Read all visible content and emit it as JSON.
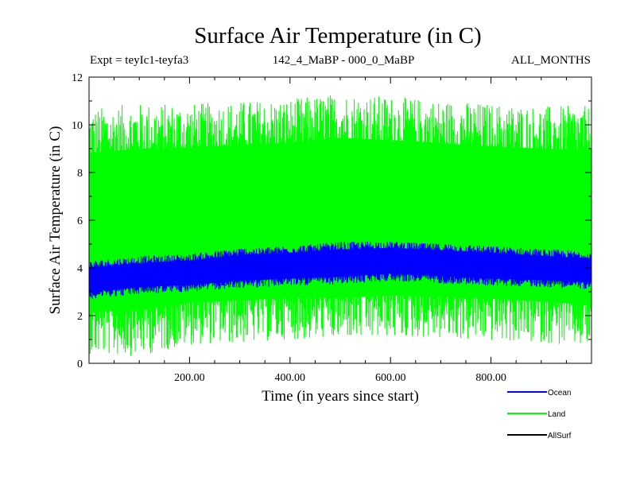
{
  "chart_data": {
    "type": "line",
    "title": "Surface Air Temperature (in C)",
    "subtitle_left": "Expt = teyIc1-teyfa3",
    "subtitle_center": "142_4_MaBP - 000_0_MaBP",
    "subtitle_right": "ALL_MONTHS",
    "xlabel": "Time (in years since start)",
    "ylabel": "Surface Air Temperature (in C)",
    "xlim": [
      0,
      1000
    ],
    "ylim": [
      0,
      12
    ],
    "x_ticks": [
      200,
      400,
      600,
      800
    ],
    "x_tick_labels": [
      "200.00",
      "400.00",
      "600.00",
      "800.00"
    ],
    "y_ticks": [
      0,
      2,
      4,
      6,
      8,
      10,
      12
    ],
    "y_tick_labels": [
      "0",
      "2",
      "4",
      "6",
      "8",
      "10",
      "12"
    ],
    "legend_position": "bottom-right",
    "series": [
      {
        "name": "Land",
        "color": "#00ff00",
        "draw_order": 1,
        "band": {
          "x": [
            0,
            100,
            200,
            300,
            400,
            500,
            600,
            700,
            800,
            900,
            1000
          ],
          "upper": [
            10.8,
            10.9,
            11.0,
            11.1,
            11.2,
            11.7,
            11.4,
            11.2,
            11.0,
            10.9,
            10.8
          ],
          "lower": [
            0.4,
            0.3,
            0.8,
            0.9,
            1.0,
            1.2,
            1.2,
            1.1,
            1.0,
            0.9,
            0.6
          ],
          "mean": [
            5.5,
            5.6,
            5.8,
            5.9,
            6.0,
            6.1,
            6.1,
            6.0,
            5.9,
            5.8,
            5.7
          ]
        }
      },
      {
        "name": "Ocean",
        "color": "#0000ff",
        "draw_order": 2,
        "band": {
          "x": [
            0,
            100,
            200,
            300,
            400,
            500,
            600,
            700,
            800,
            900,
            1000
          ],
          "upper": [
            4.3,
            4.5,
            4.6,
            4.8,
            4.9,
            5.1,
            5.1,
            5.0,
            4.9,
            4.8,
            4.7
          ],
          "lower": [
            2.7,
            2.9,
            3.0,
            3.1,
            3.2,
            3.3,
            3.4,
            3.3,
            3.2,
            3.2,
            3.1
          ],
          "mean": [
            3.5,
            3.7,
            3.8,
            4.0,
            4.1,
            4.2,
            4.3,
            4.2,
            4.1,
            4.0,
            3.9
          ]
        }
      },
      {
        "name": "AllSurf",
        "color": "#000000",
        "draw_order": 0,
        "band": null
      }
    ],
    "legend_order": [
      "Ocean",
      "Land",
      "AllSurf"
    ]
  }
}
